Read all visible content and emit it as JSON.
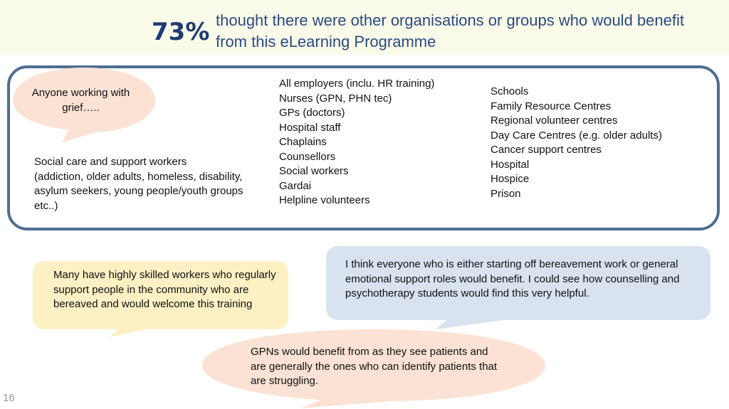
{
  "banner": {
    "percentage": "73%",
    "headline": "thought there were other organisations or groups who would benefit from this eLearning Programme"
  },
  "grief_bubble": {
    "line1": "Anyone working with",
    "line2": "grief….."
  },
  "social_care": {
    "title": "Social care and support workers",
    "detail": "(addiction, older adults, homeless, disability, asylum seekers, young people/youth groups etc..)"
  },
  "list_column_1": [
    "All employers (inclu. HR training)",
    "Nurses (GPN, PHN tec)",
    "GPs (doctors)",
    "Hospital staff",
    "Chaplains",
    "Counsellors",
    "Social workers",
    "Gardai",
    "Helpline volunteers"
  ],
  "list_column_2": [
    "Schools",
    "Family Resource Centres",
    "Regional volunteer centres",
    "Day Care Centres (e.g. older adults)",
    "Cancer support centres",
    "Hospital",
    "Hospice",
    "Prison"
  ],
  "quote_yellow": "Many have highly skilled workers who regularly support people in the community who are bereaved and would welcome this training",
  "quote_blue": "I think everyone who is either starting off bereavement work or general emotional support roles would benefit. I could see how counselling and psychotherapy students would find this very helpful.",
  "quote_peach": "GPNs would benefit from as they see patients and are generally the ones who can identify patients that are struggling.",
  "page_number": "16",
  "colors": {
    "banner_bg": "#fbfbe9",
    "stat_blue": "#1f3b73",
    "headline_blue": "#2a4a86",
    "frame_border": "#4d6e91",
    "peach": "#fbe2d4",
    "yellow": "#fdf0c3",
    "light_blue": "#d9e2f1"
  }
}
